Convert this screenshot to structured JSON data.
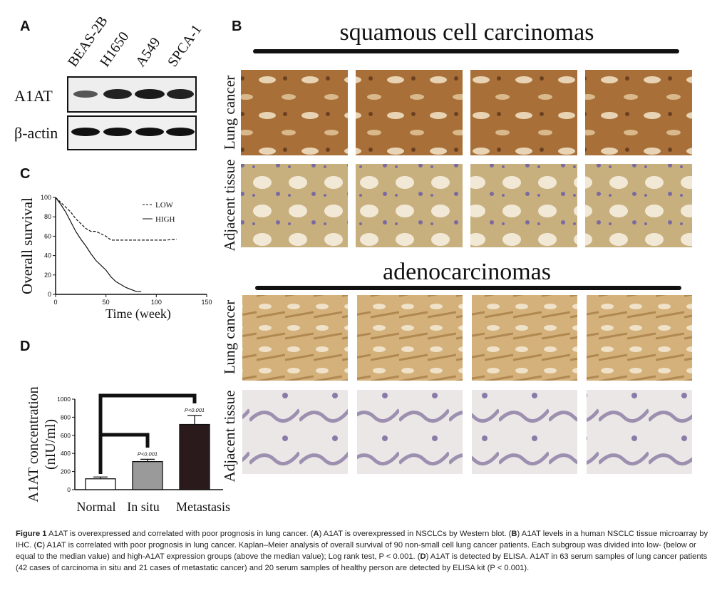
{
  "panel_labels": [
    "A",
    "B",
    "C",
    "D"
  ],
  "blot": {
    "lanes": [
      "BEAS-2B",
      "H1650",
      "A549",
      "SPCA-1"
    ],
    "rows": [
      "A1AT",
      "β-actin"
    ]
  },
  "ihc": {
    "groups": [
      "squamous cell carcinomas",
      "adenocarcinomas"
    ],
    "rows": [
      "Lung cancer",
      "Adjacent tissue"
    ]
  },
  "chart_data": [
    {
      "type": "line",
      "ylabel": "Overall survival",
      "xlabel": "Time (week)",
      "xlim": [
        0,
        150
      ],
      "xticks": [
        0,
        50,
        100,
        150
      ],
      "ylim": [
        0,
        100
      ],
      "yticks": [
        0,
        20,
        40,
        60,
        80,
        100
      ],
      "series": [
        {
          "name": "LOW",
          "dash": true,
          "x": [
            0,
            5,
            10,
            15,
            20,
            25,
            30,
            35,
            40,
            50,
            55,
            60,
            70,
            80,
            90,
            100,
            110,
            120
          ],
          "values": [
            100,
            95,
            90,
            85,
            78,
            73,
            68,
            65,
            65,
            60,
            56,
            56,
            56,
            56,
            56,
            56,
            56,
            57
          ]
        },
        {
          "name": "HIGH",
          "dash": false,
          "x": [
            0,
            5,
            10,
            15,
            20,
            25,
            30,
            35,
            40,
            45,
            50,
            55,
            60,
            65,
            70,
            75,
            80,
            85
          ],
          "values": [
            100,
            93,
            85,
            75,
            65,
            57,
            50,
            42,
            35,
            30,
            25,
            18,
            13,
            10,
            7,
            5,
            3,
            3
          ]
        }
      ]
    },
    {
      "type": "bar",
      "ylabel": "A1AT concentration",
      "ylabel_unit": "(nIU/ml)",
      "ylim": [
        0,
        1000
      ],
      "yticks": [
        0,
        200,
        400,
        600,
        800,
        1000
      ],
      "categories": [
        "Normal",
        "In situ",
        "Metastasis"
      ],
      "values": [
        120,
        310,
        720
      ],
      "errors": [
        20,
        25,
        100
      ],
      "colors": [
        "#ffffff",
        "#9a9a9a",
        "#2a1a1c"
      ],
      "annotations": [
        null,
        "P<0.001",
        "P<0.001"
      ]
    }
  ],
  "caption": [
    {
      "text": "Figure 1",
      "bold": true
    },
    {
      "text": " A1AT is overexpressed and correlated with poor prognosis in lung cancer. (",
      "bold": false
    },
    {
      "text": "A",
      "bold": true
    },
    {
      "text": ") A1AT is overexpressed in NSCLCs by Western blot. (",
      "bold": false
    },
    {
      "text": "B",
      "bold": true
    },
    {
      "text": ") A1AT levels in a human NSCLC tissue microarray by IHC. (",
      "bold": false
    },
    {
      "text": "C",
      "bold": true
    },
    {
      "text": ") A1AT is correlated with poor prognosis in lung cancer. Kaplan–Meier analysis of overall survival of 90 non-small cell lung cancer patients. Each subgroup was divided into low- (below or equal to the median value) and high-A1AT expression groups (above the median value); Log rank test, P < 0.001. (",
      "bold": false
    },
    {
      "text": "D",
      "bold": true
    },
    {
      "text": ") A1AT is detected by ELISA. A1AT in 63 serum samples of lung cancer patients (42 cases of carcinoma in situ and 21 cases of metastatic cancer) and 20 serum samples of healthy person are detected by ELISA kit (P < 0.001).",
      "bold": false
    }
  ]
}
